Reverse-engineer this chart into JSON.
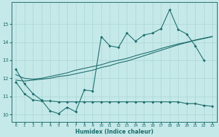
{
  "xlabel": "Humidex (Indice chaleur)",
  "ylabel": "",
  "bg_color": "#c5e8e8",
  "grid_color": "#aad4d4",
  "line_color": "#1a6b6b",
  "x_ticks": [
    0,
    1,
    2,
    3,
    4,
    5,
    6,
    7,
    8,
    9,
    10,
    11,
    12,
    13,
    14,
    15,
    16,
    17,
    18,
    19,
    20,
    21,
    22,
    23
  ],
  "ylim": [
    9.6,
    16.2
  ],
  "xlim": [
    -0.5,
    23.5
  ],
  "y_ticks": [
    10,
    11,
    12,
    13,
    14,
    15
  ],
  "series1": [
    12.5,
    11.7,
    11.15,
    10.8,
    10.2,
    10.05,
    10.4,
    10.15,
    11.35,
    11.3,
    14.3,
    13.8,
    13.7,
    14.5,
    14.05,
    14.4,
    14.5,
    14.75,
    15.8,
    14.7,
    14.45,
    13.8,
    13.0,
    null
  ],
  "series2_line_x": [
    0,
    1,
    2,
    3,
    4,
    5,
    6,
    7,
    8,
    9,
    10,
    11,
    12,
    13,
    14,
    15,
    16,
    17,
    18,
    19,
    20,
    21,
    22,
    23
  ],
  "series2_line_y": [
    11.8,
    11.15,
    10.8,
    10.75,
    10.75,
    10.7,
    10.7,
    10.7,
    10.7,
    10.7,
    10.7,
    10.7,
    10.7,
    10.7,
    10.7,
    10.7,
    10.7,
    10.7,
    10.7,
    10.7,
    10.6,
    10.6,
    10.5,
    10.45
  ],
  "line1": [
    11.9,
    11.85,
    11.9,
    11.95,
    12.0,
    12.1,
    12.15,
    12.25,
    12.35,
    12.45,
    12.6,
    12.7,
    12.85,
    12.95,
    13.1,
    13.25,
    13.4,
    13.55,
    13.7,
    13.85,
    13.98,
    14.1,
    14.2,
    14.3
  ],
  "line2": [
    12.2,
    12.0,
    11.95,
    12.0,
    12.1,
    12.2,
    12.3,
    12.45,
    12.55,
    12.65,
    12.75,
    12.9,
    13.0,
    13.1,
    13.25,
    13.38,
    13.5,
    13.65,
    13.78,
    13.9,
    14.0,
    14.12,
    14.22,
    14.32
  ]
}
